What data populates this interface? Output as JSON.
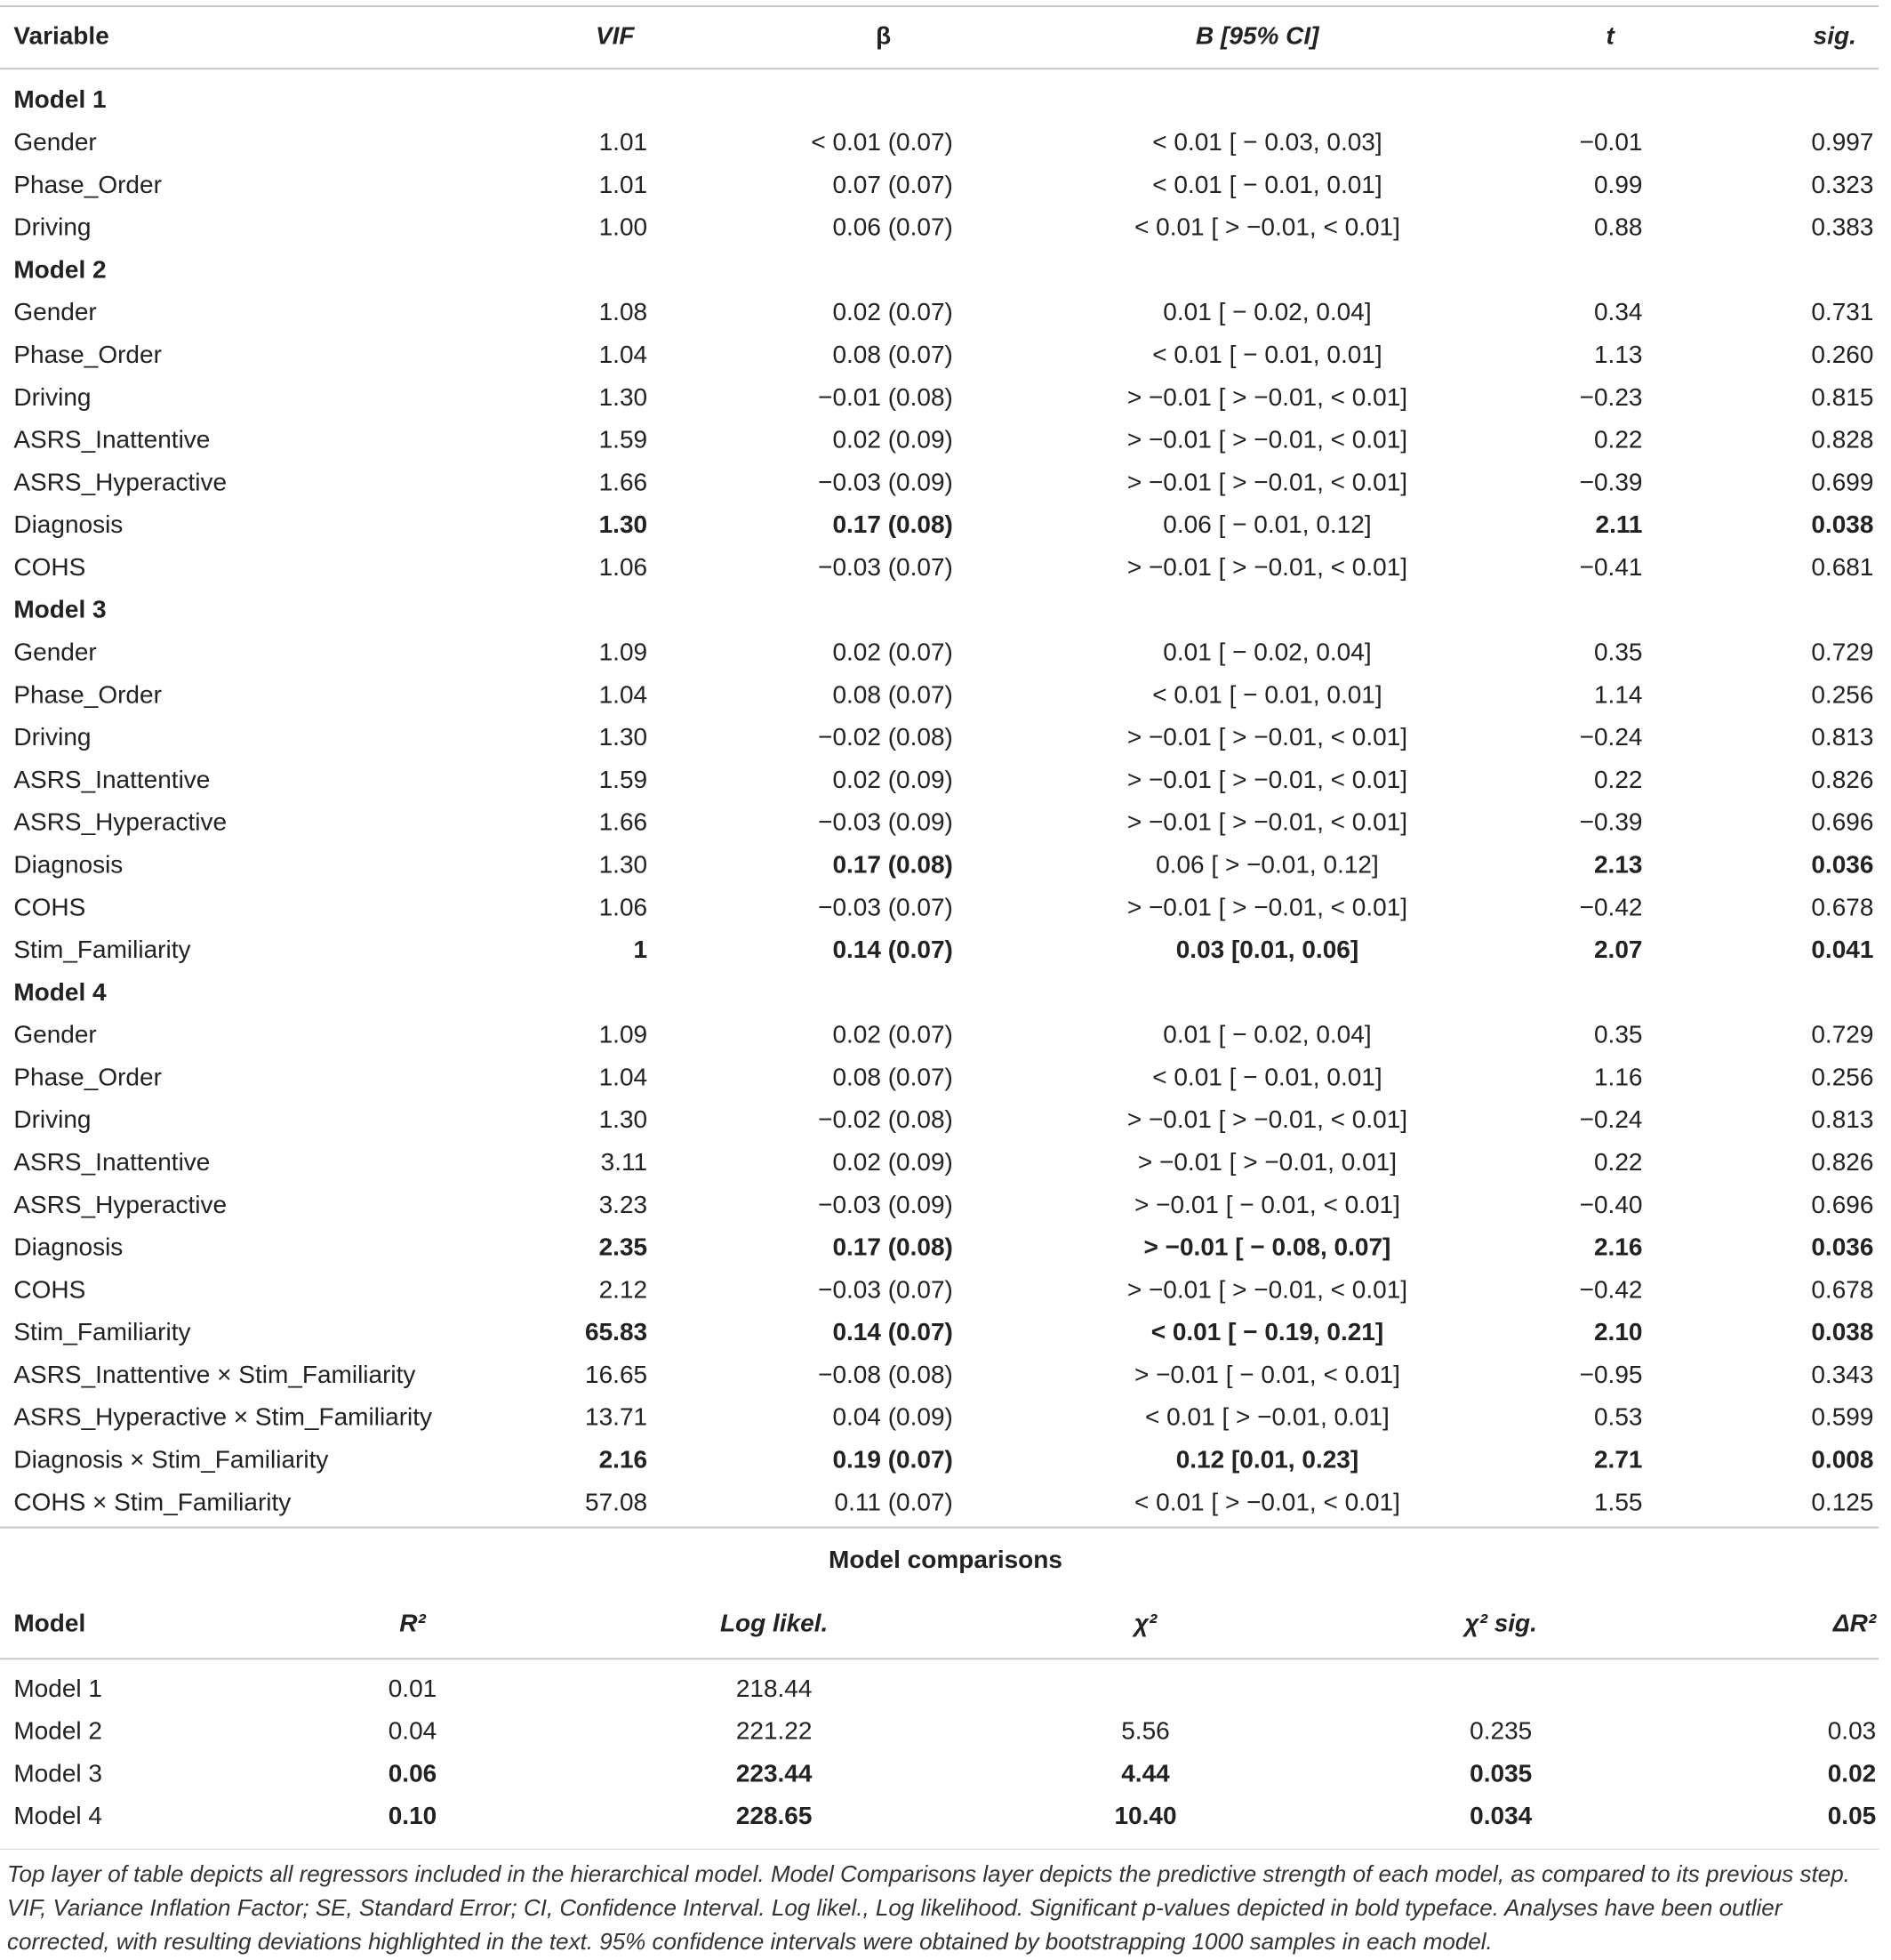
{
  "table": {
    "headers": [
      "Variable",
      "VIF",
      "β",
      "B [95% CI]",
      "t",
      "sig."
    ],
    "sections": [
      {
        "title": "Model 1",
        "rows": [
          {
            "cells": [
              "Gender",
              "1.01",
              "< 0.01 (0.07)",
              "< 0.01 [ − 0.03, 0.03]",
              "−0.01",
              "0.997"
            ]
          },
          {
            "cells": [
              "Phase_Order",
              "1.01",
              "0.07 (0.07)",
              "< 0.01 [ − 0.01, 0.01]",
              "0.99",
              "0.323"
            ]
          },
          {
            "cells": [
              "Driving",
              "1.00",
              "0.06 (0.07)",
              "< 0.01 [ > −0.01, < 0.01]",
              "0.88",
              "0.383"
            ]
          }
        ]
      },
      {
        "title": "Model 2",
        "rows": [
          {
            "cells": [
              "Gender",
              "1.08",
              "0.02 (0.07)",
              "0.01 [ − 0.02, 0.04]",
              "0.34",
              "0.731"
            ]
          },
          {
            "cells": [
              "Phase_Order",
              "1.04",
              "0.08 (0.07)",
              "< 0.01 [ − 0.01, 0.01]",
              "1.13",
              "0.260"
            ]
          },
          {
            "cells": [
              "Driving",
              "1.30",
              "−0.01 (0.08)",
              "> −0.01 [ > −0.01, < 0.01]",
              "−0.23",
              "0.815"
            ]
          },
          {
            "cells": [
              "ASRS_Inattentive",
              "1.59",
              "0.02 (0.09)",
              "> −0.01 [ > −0.01, < 0.01]",
              "0.22",
              "0.828"
            ]
          },
          {
            "cells": [
              "ASRS_Hyperactive",
              "1.66",
              "−0.03 (0.09)",
              "> −0.01 [ > −0.01, < 0.01]",
              "−0.39",
              "0.699"
            ]
          },
          {
            "cells": [
              "Diagnosis",
              "1.30",
              "0.17 (0.08)",
              "0.06 [ − 0.01, 0.12]",
              "2.11",
              "0.038"
            ],
            "bold": [
              1,
              2,
              4,
              5
            ]
          },
          {
            "cells": [
              "COHS",
              "1.06",
              "−0.03 (0.07)",
              "> −0.01 [ > −0.01, < 0.01]",
              "−0.41",
              "0.681"
            ]
          }
        ]
      },
      {
        "title": "Model 3",
        "rows": [
          {
            "cells": [
              "Gender",
              "1.09",
              "0.02 (0.07)",
              "0.01 [ − 0.02, 0.04]",
              "0.35",
              "0.729"
            ]
          },
          {
            "cells": [
              "Phase_Order",
              "1.04",
              "0.08 (0.07)",
              "< 0.01 [ − 0.01, 0.01]",
              "1.14",
              "0.256"
            ]
          },
          {
            "cells": [
              "Driving",
              "1.30",
              "−0.02 (0.08)",
              "> −0.01 [ > −0.01, < 0.01]",
              "−0.24",
              "0.813"
            ]
          },
          {
            "cells": [
              "ASRS_Inattentive",
              "1.59",
              "0.02 (0.09)",
              "> −0.01 [ > −0.01, < 0.01]",
              "0.22",
              "0.826"
            ]
          },
          {
            "cells": [
              "ASRS_Hyperactive",
              "1.66",
              "−0.03 (0.09)",
              "> −0.01 [ > −0.01, < 0.01]",
              "−0.39",
              "0.696"
            ]
          },
          {
            "cells": [
              "Diagnosis",
              "1.30",
              "0.17 (0.08)",
              "0.06 [ > −0.01, 0.12]",
              "2.13",
              "0.036"
            ],
            "bold": [
              2,
              4,
              5
            ]
          },
          {
            "cells": [
              "COHS",
              "1.06",
              "−0.03 (0.07)",
              "> −0.01 [ > −0.01, < 0.01]",
              "−0.42",
              "0.678"
            ]
          },
          {
            "cells": [
              "Stim_Familiarity",
              "1",
              "0.14 (0.07)",
              "0.03 [0.01, 0.06]",
              "2.07",
              "0.041"
            ],
            "bold": [
              1,
              2,
              3,
              4,
              5
            ]
          }
        ]
      },
      {
        "title": "Model 4",
        "rows": [
          {
            "cells": [
              "Gender",
              "1.09",
              "0.02 (0.07)",
              "0.01 [ − 0.02, 0.04]",
              "0.35",
              "0.729"
            ]
          },
          {
            "cells": [
              "Phase_Order",
              "1.04",
              "0.08 (0.07)",
              "< 0.01 [ − 0.01, 0.01]",
              "1.16",
              "0.256"
            ]
          },
          {
            "cells": [
              "Driving",
              "1.30",
              "−0.02 (0.08)",
              "> −0.01 [ > −0.01, < 0.01]",
              "−0.24",
              "0.813"
            ]
          },
          {
            "cells": [
              "ASRS_Inattentive",
              "3.11",
              "0.02 (0.09)",
              "> −0.01 [ > −0.01, 0.01]",
              "0.22",
              "0.826"
            ]
          },
          {
            "cells": [
              "ASRS_Hyperactive",
              "3.23",
              "−0.03 (0.09)",
              "> −0.01 [ − 0.01, < 0.01]",
              "−0.40",
              "0.696"
            ]
          },
          {
            "cells": [
              "Diagnosis",
              "2.35",
              "0.17 (0.08)",
              "> −0.01 [ − 0.08, 0.07]",
              "2.16",
              "0.036"
            ],
            "bold": [
              1,
              2,
              3,
              4,
              5
            ]
          },
          {
            "cells": [
              "COHS",
              "2.12",
              "−0.03 (0.07)",
              "> −0.01 [ > −0.01, < 0.01]",
              "−0.42",
              "0.678"
            ]
          },
          {
            "cells": [
              "Stim_Familiarity",
              "65.83",
              "0.14 (0.07)",
              "< 0.01 [ − 0.19, 0.21]",
              "2.10",
              "0.038"
            ],
            "bold": [
              1,
              2,
              3,
              4,
              5
            ]
          },
          {
            "cells": [
              "ASRS_Inattentive × Stim_Familiarity",
              "16.65",
              "−0.08 (0.08)",
              "> −0.01 [ − 0.01, < 0.01]",
              "−0.95",
              "0.343"
            ]
          },
          {
            "cells": [
              "ASRS_Hyperactive × Stim_Familiarity",
              "13.71",
              "0.04 (0.09)",
              "< 0.01 [ > −0.01, 0.01]",
              "0.53",
              "0.599"
            ]
          },
          {
            "cells": [
              "Diagnosis × Stim_Familiarity",
              "2.16",
              "0.19 (0.07)",
              "0.12 [0.01, 0.23]",
              "2.71",
              "0.008"
            ],
            "bold": [
              1,
              2,
              3,
              4,
              5
            ]
          },
          {
            "cells": [
              "COHS × Stim_Familiarity",
              "57.08",
              "0.11 (0.07)",
              "< 0.01 [ > −0.01, < 0.01]",
              "1.55",
              "0.125"
            ]
          }
        ]
      }
    ]
  },
  "comparison": {
    "title": "Model comparisons",
    "headers": [
      "Model",
      "R²",
      "Log likel.",
      "χ²",
      "χ² sig.",
      "ΔR²"
    ],
    "rows": [
      {
        "cells": [
          "Model 1",
          "0.01",
          "218.44"
        ]
      },
      {
        "cells": [
          "Model 2",
          "0.04",
          "221.22",
          "5.56",
          "0.235",
          "0.03"
        ]
      },
      {
        "cells": [
          "Model 3",
          "0.06",
          "223.44",
          "4.44",
          "0.035",
          "0.02"
        ],
        "bold": [
          1,
          2,
          3,
          4,
          5
        ]
      },
      {
        "cells": [
          "Model 4",
          "0.10",
          "228.65",
          "10.40",
          "0.034",
          "0.05"
        ],
        "bold": [
          1,
          2,
          3,
          4,
          5
        ]
      }
    ]
  },
  "footnote": "Top layer of table depicts all regressors included in the hierarchical model. Model Comparisons layer depicts the predictive strength of each model, as compared to its previous step. VIF, Variance Inflation Factor; SE, Standard Error; CI, Confidence Interval. Log likel., Log likelihood. Significant p-values depicted in bold typeface. Analyses have been outlier corrected, with resulting deviations highlighted in the text. 95% confidence intervals were obtained by bootstrapping 1000 samples in each model."
}
